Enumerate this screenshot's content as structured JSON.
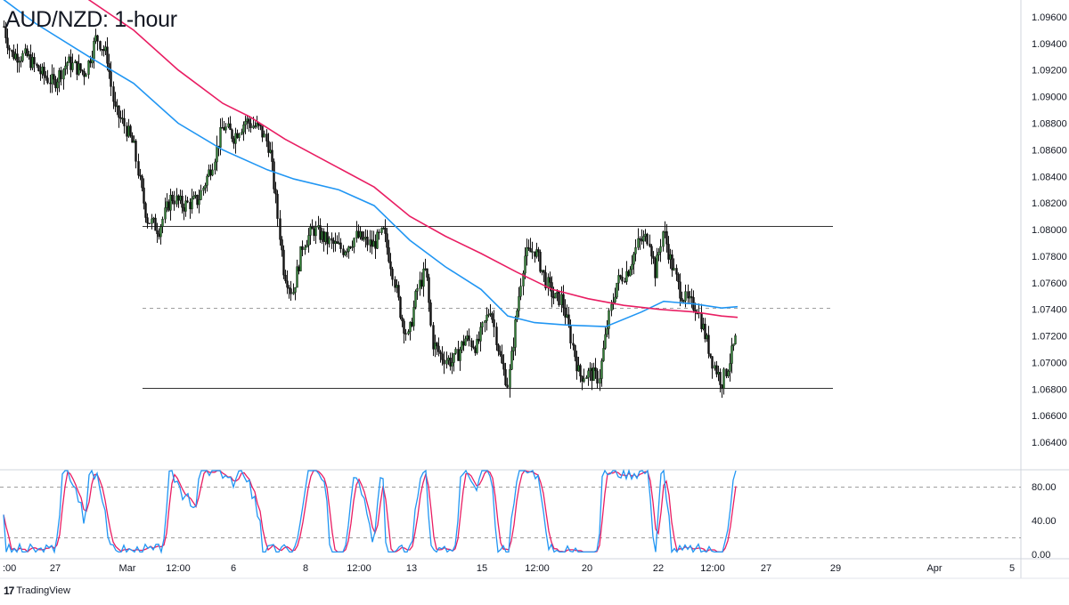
{
  "title": "AUD/NZD: 1-hour",
  "branding": {
    "logo_icon": "tradingview-logo-icon",
    "text": "TradingView"
  },
  "colors": {
    "up_candle": "#0a0a0a",
    "down_candle": "#0a0a0a",
    "sma_fast": "#2196f3",
    "sma_slow": "#e91e63",
    "stoch_k": "#2196f3",
    "stoch_d": "#e91e63",
    "levels": "#333333",
    "grid_dashed": "#9e9e9e"
  },
  "chart_data": [
    {
      "type": "candlestick",
      "title": "AUD/NZD: 1-hour",
      "ylim": [
        1.062,
        1.097
      ],
      "y_ticks": [
        "1.09600",
        "1.09400",
        "1.09200",
        "1.09000",
        "1.08800",
        "1.08600",
        "1.08400",
        "1.08200",
        "1.08000",
        "1.07800",
        "1.07600",
        "1.07400",
        "1.07200",
        "1.07000",
        "1.06800",
        "1.06600",
        "1.06400"
      ],
      "x_ticks": [
        ":00",
        "27",
        "Mar",
        "12:00",
        "6",
        "8",
        "12:00",
        "13",
        "15",
        "12:00",
        "20",
        "22",
        "12:00",
        "27",
        "29",
        "Apr",
        "5"
      ],
      "closes_approx": [
        {
          "x": ":00",
          "y": 1.0955
        },
        {
          "x": "27",
          "y": 1.092
        },
        {
          "x": "Mar",
          "y": 1.088
        },
        {
          "x": "12:00",
          "y": 1.0815
        },
        {
          "x": "6",
          "y": 1.088
        },
        {
          "x": "8",
          "y": 1.079
        },
        {
          "x": "12:00",
          "y": 1.0795
        },
        {
          "x": "13",
          "y": 1.078
        },
        {
          "x": "15",
          "y": 1.07
        },
        {
          "x": "12:00",
          "y": 1.0785
        },
        {
          "x": "20",
          "y": 1.069
        },
        {
          "x": "22",
          "y": 1.0795
        },
        {
          "x": "12:00",
          "y": 1.072
        },
        {
          "x": "",
          "y": 1.072
        }
      ],
      "horizontal_levels": [
        {
          "value": 1.0803,
          "style": "solid",
          "label": ""
        },
        {
          "value": 1.0741,
          "style": "dashed",
          "label": ""
        },
        {
          "value": 1.0681,
          "style": "solid",
          "label": ""
        }
      ],
      "moving_averages": [
        {
          "color": "#2196f3",
          "end_value": 1.0742
        },
        {
          "color": "#e91e63",
          "end_value": 1.0735
        }
      ]
    },
    {
      "type": "line",
      "title": "",
      "ylim": [
        -5,
        100
      ],
      "y_ticks": [
        "80.00",
        "40.00",
        "0.00"
      ],
      "overbought": 80,
      "oversold": 20,
      "series": [
        {
          "values": [
            85,
            70,
            20,
            15,
            80,
            85,
            20,
            10,
            15,
            90,
            95,
            75,
            80,
            15,
            10,
            95,
            20,
            85,
            15,
            80,
            10,
            85,
            85,
            90,
            15,
            10,
            90
          ]
        },
        {
          "values": [
            80,
            72,
            25,
            18,
            75,
            80,
            25,
            14,
            18,
            85,
            92,
            78,
            75,
            20,
            14,
            90,
            25,
            80,
            20,
            75,
            15,
            80,
            82,
            85,
            20,
            14,
            80
          ]
        }
      ]
    }
  ]
}
